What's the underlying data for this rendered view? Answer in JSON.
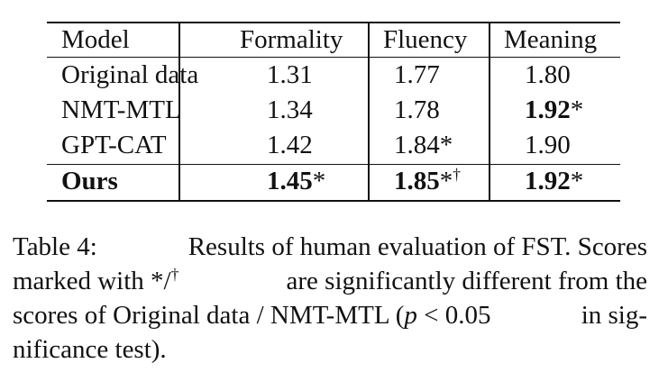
{
  "table": {
    "columns": [
      "Model",
      "Formality",
      "Fluency",
      "Meaning"
    ],
    "rows": [
      {
        "model": "Original data",
        "formality": "1.31",
        "fluency": "1.77",
        "meaning": "1.80"
      },
      {
        "model": "NMT-MTL",
        "formality": "1.34",
        "fluency": "1.78",
        "meaning": "1.92",
        "meaning_mark": "*"
      },
      {
        "model": "GPT-CAT",
        "formality": "1.42",
        "fluency": "1.84",
        "fluency_mark": "*",
        "meaning": "1.90"
      },
      {
        "model": "Ours",
        "formality": "1.45",
        "formality_mark": "*",
        "fluency": "1.85",
        "fluency_mark": "*",
        "fluency_sup": "†",
        "meaning": "1.92",
        "meaning_mark": "*"
      }
    ]
  },
  "caption": {
    "label": "Table 4:",
    "line1": "Results of human evaluation of FST. Scores",
    "line2_a": "marked with */",
    "line2_sup": "†",
    "line2_b": "are significantly different from the",
    "line3_a": "scores of Original data / NMT-MTL (",
    "line3_p": "p",
    "line3_lt": "<",
    "line3_val": "0.05",
    "line3_b": "in sig-",
    "line4": "nificance test)."
  }
}
